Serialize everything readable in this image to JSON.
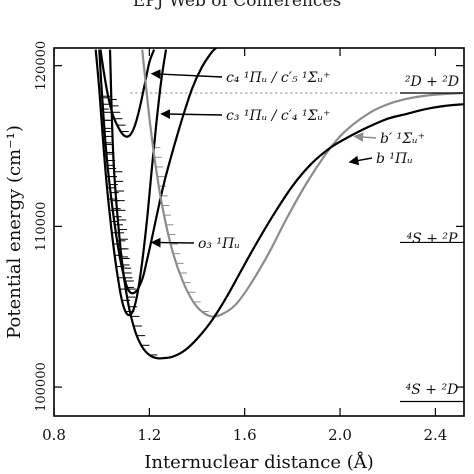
{
  "header": {
    "text": "EPJ Web of Conferences"
  },
  "chart_data": {
    "type": "line",
    "xlabel": "Internuclear distance (Å)",
    "ylabel": "Potential energy (cm⁻¹)",
    "xlim": [
      0.8,
      2.52
    ],
    "ylim": [
      98200,
      121100
    ],
    "xticks": [
      0.8,
      1.2,
      1.6,
      2.0,
      2.4
    ],
    "xtick_labels": [
      "0.8",
      "1.2",
      "1.6",
      "2.0",
      "2.4"
    ],
    "yticks": [
      100000,
      110000,
      120000
    ],
    "ytick_labels": [
      "100000",
      "110000",
      "120000"
    ],
    "grid": false,
    "dotted_line": {
      "y": 118300,
      "color": "#999999"
    },
    "series": [
      {
        "name": "c4 ¹Πu / c′5 ¹Σu⁺",
        "color": "#000000",
        "x": [
          0.995,
          1.01,
          1.03,
          1.05,
          1.08,
          1.1,
          1.12,
          1.14,
          1.16,
          1.18,
          1.2,
          1.22
        ],
        "y": [
          121000,
          119500,
          117900,
          116800,
          115900,
          115600,
          115700,
          116300,
          117400,
          118800,
          120200,
          121000
        ],
        "vibrational_levels": [
          115900,
          116300,
          116700,
          117100,
          117500,
          117900
        ]
      },
      {
        "name": "c3 ¹Πu / c′4 ¹Σu⁺",
        "color": "#000000",
        "x": [
          0.99,
          1.0,
          1.02,
          1.05,
          1.08,
          1.11,
          1.14,
          1.17,
          1.19,
          1.21,
          1.23,
          1.26,
          1.3,
          1.34,
          1.38,
          1.42,
          1.46,
          1.48
        ],
        "y": [
          121000,
          118500,
          114500,
          110600,
          107800,
          106100,
          105900,
          106700,
          107900,
          109200,
          110600,
          112600,
          114800,
          116800,
          118600,
          119900,
          120800,
          121100
        ],
        "vibrational_levels": [
          106100,
          106600,
          107100,
          107600,
          108100,
          108600,
          109100,
          109600,
          110100,
          110600,
          111100,
          111600,
          112100,
          112600,
          113100,
          113600,
          114100,
          114600,
          115100,
          115600,
          116100,
          116600,
          117100,
          117600,
          118100
        ]
      },
      {
        "name": "o3 ¹Πu",
        "color": "#000000",
        "x": [
          0.975,
          0.99,
          1.01,
          1.03,
          1.05,
          1.07,
          1.09,
          1.11,
          1.13,
          1.15,
          1.17,
          1.19,
          1.21,
          1.23,
          1.25,
          1.27
        ],
        "y": [
          121000,
          118500,
          114500,
          111300,
          108700,
          106600,
          105100,
          104500,
          104700,
          105800,
          107800,
          110400,
          113500,
          116500,
          119100,
          121000
        ],
        "vibrational_levels": [
          104700,
          105400,
          106100,
          106800,
          107500,
          108200,
          108900,
          109600,
          110300,
          111000,
          111700,
          112400,
          113100,
          113800,
          114500,
          115200,
          115900,
          116600,
          117300,
          118000
        ]
      },
      {
        "name": "b′ ¹Σu⁺",
        "color": "#8c8c8c",
        "x": [
          1.17,
          1.2,
          1.23,
          1.26,
          1.3,
          1.34,
          1.38,
          1.42,
          1.46,
          1.5,
          1.56,
          1.62,
          1.7,
          1.78,
          1.86,
          1.94,
          2.0,
          2.06,
          2.14,
          2.22,
          2.3,
          2.4,
          2.52
        ],
        "y": [
          121000,
          116800,
          113400,
          110800,
          108300,
          106600,
          105400,
          104700,
          104400,
          104500,
          105100,
          106300,
          108300,
          110600,
          112700,
          114500,
          115600,
          116400,
          117200,
          117700,
          118000,
          118200,
          118300
        ],
        "vibrational_levels": [
          104700,
          105300,
          105900,
          106500,
          107100,
          107700,
          108300,
          108900,
          109500,
          110100,
          110700,
          111300,
          111900,
          112500,
          113100,
          113700,
          114300,
          114900
        ]
      },
      {
        "name": "b ¹Πu",
        "color": "#000000",
        "x": [
          1.035,
          1.05,
          1.08,
          1.11,
          1.14,
          1.17,
          1.2,
          1.23,
          1.26,
          1.3,
          1.35,
          1.4,
          1.46,
          1.52,
          1.58,
          1.64,
          1.72,
          1.8,
          1.88,
          1.96,
          2.04,
          2.12,
          2.2,
          2.28,
          2.36,
          2.44,
          2.52
        ],
        "y": [
          121000,
          114000,
          108500,
          105300,
          103500,
          102500,
          102000,
          101800,
          101800,
          101900,
          102300,
          103000,
          104100,
          105500,
          107100,
          108700,
          110700,
          112500,
          113900,
          114900,
          115600,
          116200,
          116700,
          117000,
          117300,
          117500,
          117600
        ],
        "vibrational_levels": [
          102000,
          102600,
          103200,
          103800,
          104400,
          105000,
          105600,
          106200,
          106800,
          107400,
          108000,
          108600,
          109200,
          109800,
          110400,
          111000,
          111600,
          112200,
          112800,
          113400
        ]
      }
    ],
    "annotations": [
      {
        "id": "c4",
        "text": "c₄ ¹Πᵤ / c′₅ ¹Σᵤ⁺",
        "target": [
          1.21,
          119500
        ],
        "color": "#000000"
      },
      {
        "id": "c3",
        "text": "c₃ ¹Πᵤ / c′₄ ¹Σᵤ⁺",
        "target": [
          1.25,
          117000
        ],
        "color": "#000000"
      },
      {
        "id": "b_prime",
        "text": "b′ ¹Σᵤ⁺",
        "target": [
          2.06,
          115600
        ],
        "color": "#8c8c8c"
      },
      {
        "id": "b",
        "text": "b ¹Πᵤ",
        "target": [
          2.04,
          114000
        ],
        "color": "#000000"
      },
      {
        "id": "o3",
        "text": "o₃ ¹Πᵤ",
        "target": [
          1.21,
          109000
        ],
        "color": "#000000"
      }
    ],
    "dissociation_limits": [
      {
        "id": "d2d",
        "label": "²D + ²D",
        "y": 118300
      },
      {
        "id": "s2p",
        "label": "⁴S + ²P",
        "y": 109000
      },
      {
        "id": "s2d",
        "label": "⁴S + ²D",
        "y": 99100
      }
    ]
  }
}
